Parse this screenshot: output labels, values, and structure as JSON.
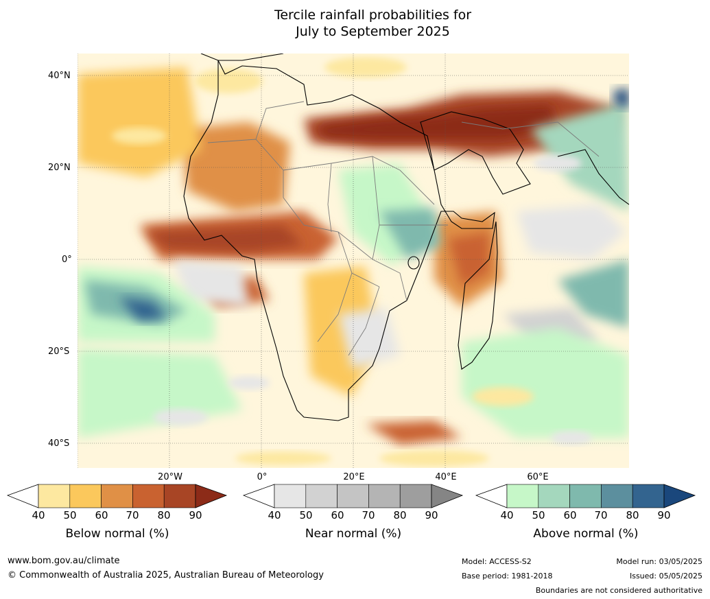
{
  "title_line1": "Tercile rainfall probabilities for",
  "title_line2": "July to September 2025",
  "map": {
    "lat_labels": [
      "40°N",
      "20°N",
      "0°",
      "20°S",
      "40°S"
    ],
    "lon_labels": [
      "20°W",
      "0°",
      "20°E",
      "40°E",
      "60°E"
    ],
    "palette": {
      "below": [
        "#fde8a0",
        "#fbc85c",
        "#e09046",
        "#c96230",
        "#a84525",
        "#8c2b18"
      ],
      "near": [
        "#e6e6e6",
        "#d2d2d2",
        "#c4c4c4",
        "#b4b4b4",
        "#9e9e9e",
        "#858585"
      ],
      "above": [
        "#c6f7c8",
        "#a4d7bd",
        "#7fb9ad",
        "#5c8f9e",
        "#33648f",
        "#1a477c"
      ]
    }
  },
  "colorbars": [
    {
      "id": "below",
      "title": "Below normal (%)",
      "ticks": [
        "40",
        "50",
        "60",
        "70",
        "80",
        "90"
      ]
    },
    {
      "id": "near",
      "title": "Near normal (%)",
      "ticks": [
        "40",
        "50",
        "60",
        "70",
        "80",
        "90"
      ]
    },
    {
      "id": "above",
      "title": "Above normal (%)",
      "ticks": [
        "40",
        "50",
        "60",
        "70",
        "80",
        "90"
      ]
    }
  ],
  "footer": {
    "website": "www.bom.gov.au/climate",
    "copyright": "© Commonwealth of Australia 2025, Australian Bureau of Meteorology",
    "model": "Model: ACCESS-S2",
    "base_period": "Base period: 1981-2018",
    "model_run": "Model run: 03/05/2025",
    "issued": "Issued: 05/05/2025",
    "disclaimer": "Boundaries are not considered authoritative"
  }
}
